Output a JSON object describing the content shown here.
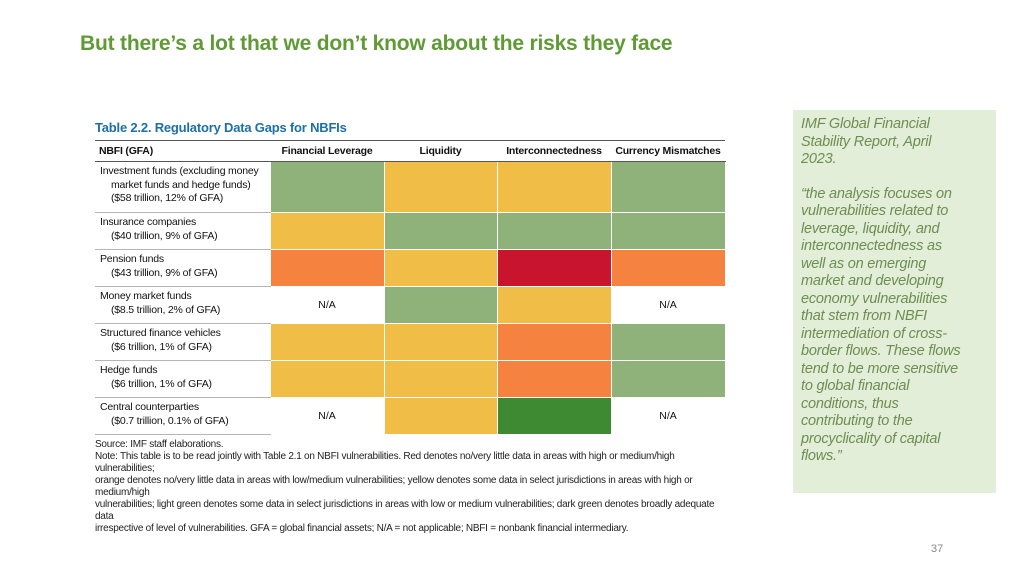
{
  "slide": {
    "title": "But there’s a lot that we don’t know about the risks they face",
    "page_number": "37"
  },
  "table": {
    "title": "Table 2.2. Regulatory Data Gaps for NBFIs",
    "headers": [
      "NBFI (GFA)",
      "Financial Leverage",
      "Liquidity",
      "Interconnectedness",
      "Currency Mismatches"
    ],
    "legend_colors": {
      "red": "#c8142d",
      "orange": "#f5833f",
      "yellow": "#f0bd46",
      "light_green": "#8fb27a",
      "dark_green": "#3e8a32"
    },
    "rows": [
      {
        "label_lines": [
          "Investment funds (excluding money",
          "market funds and hedge funds)",
          "($58 trillion, 12% of GFA)"
        ],
        "cells": [
          {
            "status": "light_green",
            "text": ""
          },
          {
            "status": "yellow",
            "text": ""
          },
          {
            "status": "yellow",
            "text": ""
          },
          {
            "status": "light_green",
            "text": ""
          }
        ]
      },
      {
        "label_lines": [
          "Insurance companies",
          "($40 trillion, 9% of GFA)"
        ],
        "cells": [
          {
            "status": "yellow",
            "text": ""
          },
          {
            "status": "light_green",
            "text": ""
          },
          {
            "status": "light_green",
            "text": ""
          },
          {
            "status": "light_green",
            "text": ""
          }
        ]
      },
      {
        "label_lines": [
          "Pension funds",
          "($43 trillion, 9% of GFA)"
        ],
        "cells": [
          {
            "status": "orange",
            "text": ""
          },
          {
            "status": "yellow",
            "text": ""
          },
          {
            "status": "red",
            "text": ""
          },
          {
            "status": "orange",
            "text": ""
          }
        ]
      },
      {
        "label_lines": [
          "Money market funds",
          "($8.5 trillion, 2% of GFA)"
        ],
        "cells": [
          {
            "status": "na",
            "text": "N/A"
          },
          {
            "status": "light_green",
            "text": ""
          },
          {
            "status": "yellow",
            "text": ""
          },
          {
            "status": "na",
            "text": "N/A"
          }
        ]
      },
      {
        "label_lines": [
          "Structured finance vehicles",
          "($6 trillion, 1% of GFA)"
        ],
        "cells": [
          {
            "status": "yellow",
            "text": ""
          },
          {
            "status": "yellow",
            "text": ""
          },
          {
            "status": "orange",
            "text": ""
          },
          {
            "status": "light_green",
            "text": ""
          }
        ]
      },
      {
        "label_lines": [
          "Hedge funds",
          "($6 trillion, 1% of GFA)"
        ],
        "cells": [
          {
            "status": "yellow",
            "text": ""
          },
          {
            "status": "yellow",
            "text": ""
          },
          {
            "status": "orange",
            "text": ""
          },
          {
            "status": "light_green",
            "text": ""
          }
        ]
      },
      {
        "label_lines": [
          "Central counterparties",
          "($0.7 trillion, 0.1% of GFA)"
        ],
        "cells": [
          {
            "status": "na",
            "text": "N/A"
          },
          {
            "status": "yellow",
            "text": ""
          },
          {
            "status": "dark_green",
            "text": ""
          },
          {
            "status": "na",
            "text": "N/A"
          }
        ]
      }
    ],
    "source": "Source: IMF staff elaborations.",
    "note_lines": [
      "Note: This table is to be read jointly with Table 2.1 on NBFI vulnerabilities. Red denotes no/very little data in areas with high or medium/high vulnerabilities;",
      "orange denotes no/very little data in areas with low/medium vulnerabilities; yellow denotes some data in select jurisdictions in areas with high or medium/high",
      "vulnerabilities; light green denotes some data in select jurisdictions in areas with low or medium vulnerabilities; dark green denotes broadly adequate data",
      "irrespective of level of vulnerabilities. GFA = global financial assets; N/A = not applicable; NBFI = nonbank financial intermediary."
    ]
  },
  "quote_box": {
    "source_lines": [
      "IMF Global Financial",
      "Stability Report, April",
      "2023."
    ],
    "quote_lines": [
      "“the analysis focuses on",
      "vulnerabilities related to",
      "leverage, liquidity, and",
      "interconnectedness as",
      "well as on emerging",
      "market and developing",
      "economy vulnerabilities",
      "that stem from NBFI",
      "intermediation of cross-",
      "border flows. These flows",
      "tend to be more sensitive",
      "to global financial",
      "conditions, thus",
      "contributing to the",
      "procyclicality of capital",
      "flows.”"
    ]
  }
}
